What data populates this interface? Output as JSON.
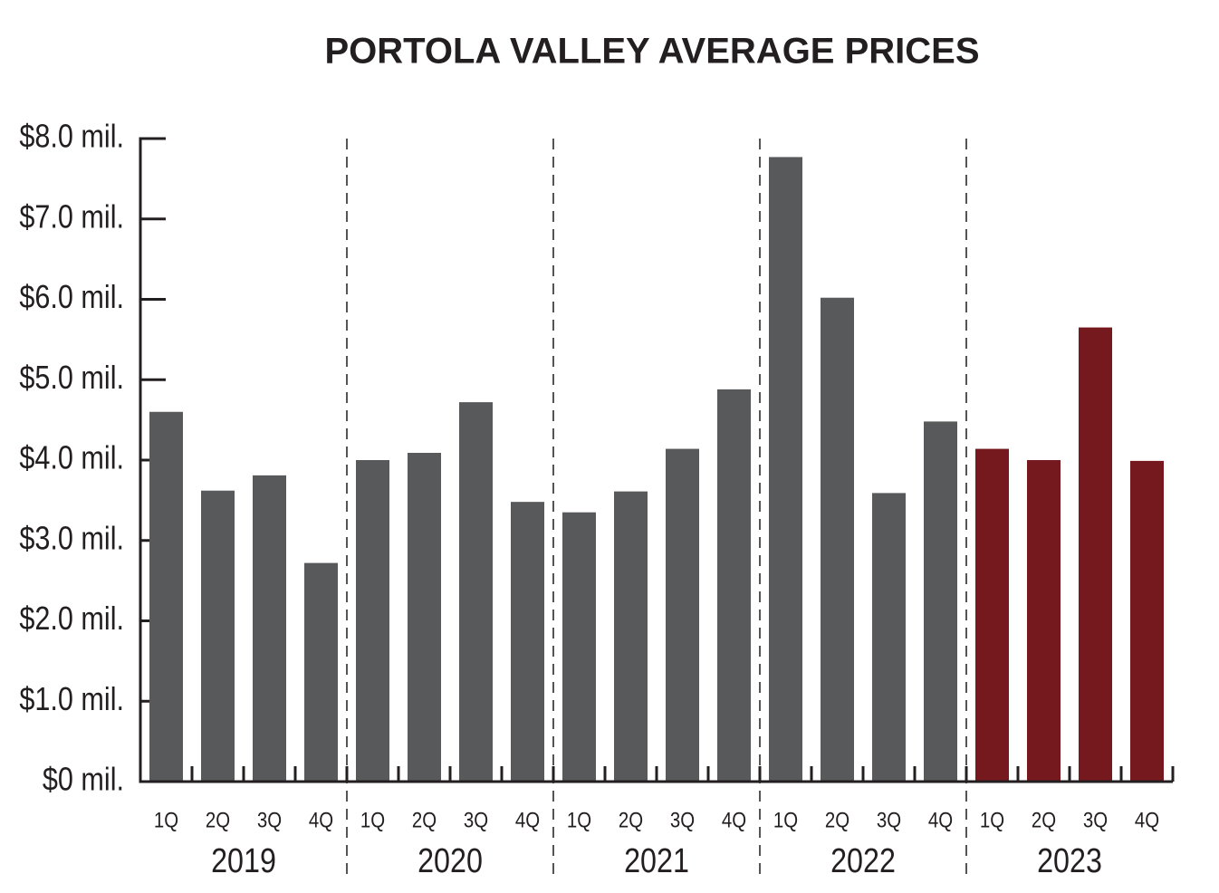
{
  "chart_data": {
    "type": "bar",
    "title": "PORTOLA VALLEY AVERAGE PRICES",
    "categories": [
      "1Q",
      "2Q",
      "3Q",
      "4Q",
      "1Q",
      "2Q",
      "3Q",
      "4Q",
      "1Q",
      "2Q",
      "3Q",
      "4Q",
      "1Q",
      "2Q",
      "3Q",
      "4Q",
      "1Q",
      "2Q",
      "3Q",
      "4Q"
    ],
    "groups": [
      {
        "label": "2019",
        "color": "#58595b"
      },
      {
        "label": "2020",
        "color": "#58595b"
      },
      {
        "label": "2021",
        "color": "#58595b"
      },
      {
        "label": "2022",
        "color": "#58595b"
      },
      {
        "label": "2023",
        "color": "#76191e"
      }
    ],
    "values": [
      4.6,
      3.62,
      3.81,
      2.72,
      4.0,
      4.09,
      4.72,
      3.48,
      3.35,
      3.61,
      4.14,
      4.88,
      7.77,
      6.02,
      3.59,
      4.48,
      4.14,
      4.0,
      5.65,
      3.99
    ],
    "ylim": [
      0,
      8
    ],
    "yticks": [
      {
        "value": 0,
        "label": "$0 mil."
      },
      {
        "value": 1,
        "label": "$1.0 mil."
      },
      {
        "value": 2,
        "label": "$2.0 mil."
      },
      {
        "value": 3,
        "label": "$3.0 mil."
      },
      {
        "value": 4,
        "label": "$4.0 mil."
      },
      {
        "value": 5,
        "label": "$5.0 mil."
      },
      {
        "value": 6,
        "label": "$6.0 mil."
      },
      {
        "value": 7,
        "label": "$7.0 mil."
      },
      {
        "value": 8,
        "label": "$8.0 mil."
      }
    ]
  }
}
